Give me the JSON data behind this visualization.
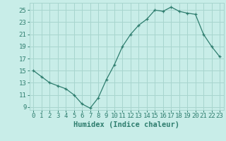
{
  "x": [
    0,
    1,
    2,
    3,
    4,
    5,
    6,
    7,
    8,
    9,
    10,
    11,
    12,
    13,
    14,
    15,
    16,
    17,
    18,
    19,
    20,
    21,
    22,
    23
  ],
  "y": [
    15,
    14,
    13,
    12.5,
    12,
    11,
    9.5,
    8.8,
    10.5,
    13.5,
    16,
    19,
    21,
    22.5,
    23.5,
    25,
    24.8,
    25.5,
    24.8,
    24.5,
    24.3,
    21,
    19,
    17.3
  ],
  "line_color": "#2e7d6e",
  "marker": "+",
  "bg_color": "#c8ede8",
  "grid_color": "#a8d5ce",
  "xlabel": "Humidex (Indice chaleur)",
  "ylim": [
    8.5,
    26.2
  ],
  "yticks": [
    9,
    11,
    13,
    15,
    17,
    19,
    21,
    23,
    25
  ],
  "xlim": [
    -0.5,
    23.5
  ],
  "xticks": [
    0,
    1,
    2,
    3,
    4,
    5,
    6,
    7,
    8,
    9,
    10,
    11,
    12,
    13,
    14,
    15,
    16,
    17,
    18,
    19,
    20,
    21,
    22,
    23
  ],
  "tick_fontsize": 6.5,
  "xlabel_fontsize": 7.5
}
